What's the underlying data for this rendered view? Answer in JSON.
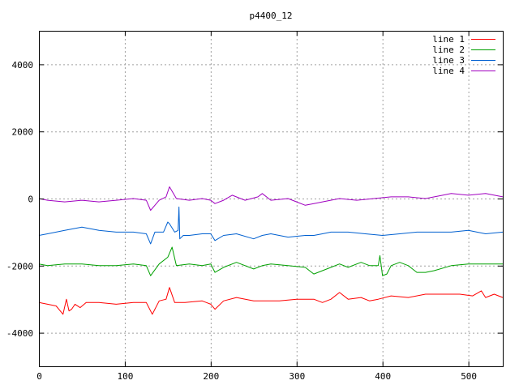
{
  "chart_data": {
    "type": "line",
    "title": "p4400_12",
    "xlabel": "",
    "ylabel": "",
    "xlim": [
      0,
      540
    ],
    "ylim": [
      -5000,
      5000
    ],
    "x_ticks": [
      0,
      100,
      200,
      300,
      400,
      500
    ],
    "y_ticks": [
      -4000,
      -2000,
      0,
      2000,
      4000
    ],
    "grid": true,
    "legend_position": "top-right",
    "series": [
      {
        "name": "line 1",
        "color": "#ff0000",
        "x": [
          0,
          10,
          20,
          28,
          32,
          35,
          38,
          42,
          48,
          55,
          70,
          90,
          110,
          125,
          132,
          140,
          148,
          152,
          158,
          170,
          190,
          200,
          205,
          215,
          230,
          250,
          260,
          280,
          300,
          320,
          330,
          340,
          350,
          360,
          375,
          385,
          395,
          410,
          430,
          450,
          470,
          490,
          505,
          515,
          520,
          530,
          540
        ],
        "y": [
          -3100,
          -3150,
          -3200,
          -3450,
          -3000,
          -3350,
          -3300,
          -3150,
          -3250,
          -3100,
          -3100,
          -3150,
          -3100,
          -3100,
          -3450,
          -3050,
          -3000,
          -2650,
          -3100,
          -3100,
          -3050,
          -3150,
          -3300,
          -3050,
          -2950,
          -3050,
          -3050,
          -3050,
          -3000,
          -3000,
          -3100,
          -3000,
          -2800,
          -3000,
          -2950,
          -3050,
          -3000,
          -2900,
          -2950,
          -2850,
          -2850,
          -2850,
          -2900,
          -2750,
          -2950,
          -2850,
          -2950
        ]
      },
      {
        "name": "line 2",
        "color": "#00a000",
        "x": [
          0,
          10,
          30,
          50,
          70,
          90,
          110,
          125,
          130,
          140,
          150,
          155,
          160,
          175,
          190,
          200,
          205,
          215,
          230,
          250,
          260,
          270,
          290,
          310,
          320,
          330,
          340,
          350,
          360,
          375,
          385,
          395,
          397,
          400,
          405,
          410,
          420,
          430,
          440,
          450,
          460,
          480,
          500,
          520,
          540
        ],
        "y": [
          -1950,
          -2000,
          -1950,
          -1950,
          -2000,
          -2000,
          -1950,
          -2000,
          -2300,
          -1950,
          -1750,
          -1450,
          -2000,
          -1950,
          -2000,
          -1950,
          -2200,
          -2050,
          -1900,
          -2100,
          -2000,
          -1950,
          -2000,
          -2050,
          -2250,
          -2150,
          -2050,
          -1950,
          -2050,
          -1900,
          -2000,
          -2000,
          -1700,
          -2300,
          -2250,
          -2000,
          -1900,
          -2000,
          -2200,
          -2200,
          -2150,
          -2000,
          -1950,
          -1950,
          -1950
        ]
      },
      {
        "name": "line 3",
        "color": "#0060d0",
        "x": [
          0,
          10,
          30,
          50,
          70,
          90,
          110,
          125,
          130,
          135,
          145,
          150,
          152,
          158,
          162,
          163,
          164,
          168,
          175,
          190,
          200,
          205,
          215,
          230,
          250,
          260,
          270,
          290,
          310,
          320,
          330,
          340,
          360,
          380,
          400,
          420,
          440,
          460,
          480,
          500,
          520,
          540
        ],
        "y": [
          -1100,
          -1050,
          -950,
          -850,
          -950,
          -1000,
          -1000,
          -1050,
          -1350,
          -1000,
          -1000,
          -700,
          -750,
          -1000,
          -950,
          -250,
          -1200,
          -1100,
          -1100,
          -1050,
          -1050,
          -1250,
          -1100,
          -1050,
          -1200,
          -1100,
          -1050,
          -1150,
          -1100,
          -1100,
          -1050,
          -1000,
          -1000,
          -1050,
          -1100,
          -1050,
          -1000,
          -1000,
          -1000,
          -950,
          -1050,
          -1000
        ]
      },
      {
        "name": "line 4",
        "color": "#a000c0",
        "x": [
          0,
          10,
          30,
          50,
          70,
          90,
          110,
          125,
          130,
          140,
          148,
          152,
          160,
          175,
          190,
          200,
          205,
          215,
          225,
          240,
          255,
          260,
          270,
          290,
          300,
          310,
          320,
          330,
          350,
          370,
          390,
          410,
          430,
          450,
          470,
          480,
          500,
          520,
          540
        ],
        "y": [
          0,
          -50,
          -100,
          -50,
          -100,
          -50,
          0,
          -50,
          -350,
          -50,
          50,
          350,
          0,
          -50,
          0,
          -50,
          -150,
          -50,
          100,
          -50,
          50,
          150,
          -50,
          0,
          -100,
          -200,
          -150,
          -100,
          0,
          -50,
          0,
          50,
          50,
          0,
          100,
          150,
          100,
          150,
          50
        ]
      }
    ]
  }
}
